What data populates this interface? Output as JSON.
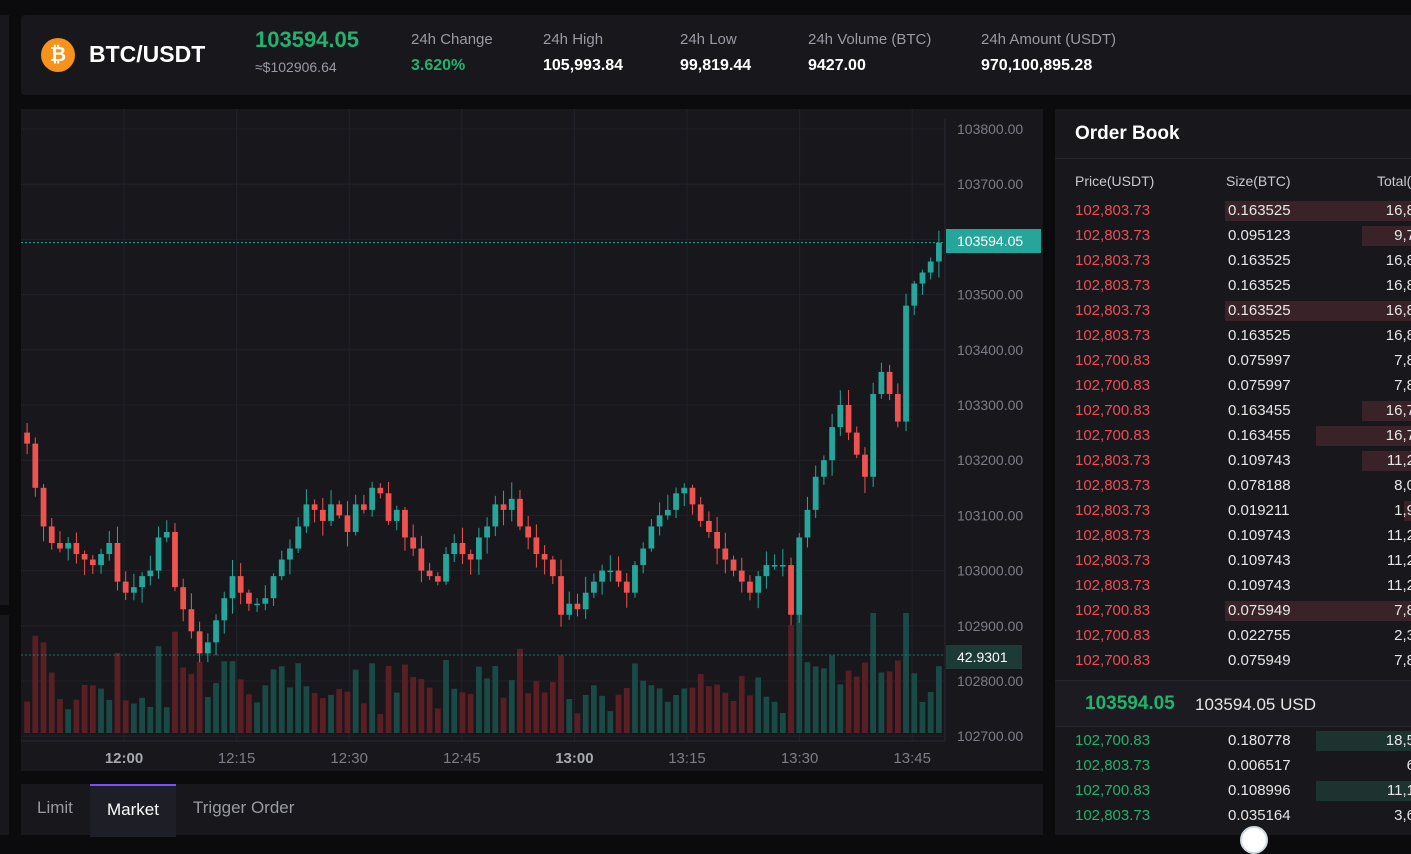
{
  "ticker": {
    "coin_icon": "bitcoin-icon",
    "coin_glyph": "₿",
    "pair": "BTC/USDT",
    "last_price": "103594.05",
    "last_usd": "≈$102906.64",
    "stats": [
      {
        "label": "24h Change",
        "value": "3.620%",
        "positive": true
      },
      {
        "label": "24h High",
        "value": "105,993.84"
      },
      {
        "label": "24h Low",
        "value": "99,819.44"
      },
      {
        "label": "24h Volume (BTC)",
        "value": "9427.00"
      },
      {
        "label": "24h Amount (USDT)",
        "value": "970,100,895.28"
      }
    ]
  },
  "chart_data": {
    "type": "candlestick",
    "y_ticks": [
      "103800.00",
      "103700.00",
      "103600.00",
      "103500.00",
      "103400.00",
      "103300.00",
      "103200.00",
      "103100.00",
      "103000.00",
      "102900.00",
      "102800.00",
      "102700.00"
    ],
    "x_ticks": [
      {
        "label": "12:00",
        "bold": true
      },
      {
        "label": "12:15",
        "bold": false
      },
      {
        "label": "12:30",
        "bold": false
      },
      {
        "label": "12:45",
        "bold": false
      },
      {
        "label": "13:00",
        "bold": true
      },
      {
        "label": "13:15",
        "bold": false
      },
      {
        "label": "13:30",
        "bold": false
      },
      {
        "label": "13:45",
        "bold": false
      }
    ],
    "current_price": "103594.05",
    "volume_marker": "42.9301",
    "closes": [
      103230,
      103150,
      103080,
      103050,
      103040,
      103050,
      103030,
      103020,
      103010,
      103030,
      103050,
      102980,
      102960,
      102970,
      102990,
      103000,
      103060,
      103070,
      102970,
      102930,
      102890,
      102850,
      102870,
      102910,
      102950,
      102990,
      102960,
      102940,
      102940,
      102950,
      102990,
      103020,
      103040,
      103080,
      103120,
      103110,
      103090,
      103120,
      103100,
      103070,
      103120,
      103110,
      103150,
      103140,
      103090,
      103110,
      103060,
      103040,
      103000,
      102990,
      102980,
      103030,
      103050,
      103030,
      103020,
      103060,
      103080,
      103120,
      103110,
      103130,
      103080,
      103060,
      103030,
      103020,
      102990,
      102920,
      102940,
      102930,
      102960,
      102980,
      103000,
      103000,
      102980,
      102960,
      103010,
      103040,
      103080,
      103100,
      103110,
      103140,
      103150,
      103120,
      103090,
      103070,
      103040,
      103020,
      103000,
      102980,
      102960,
      102990,
      103010,
      103010,
      103010,
      102920,
      103060,
      103110,
      103170,
      103200,
      103260,
      103300,
      103250,
      103210,
      103170,
      103320,
      103360,
      103320,
      103270,
      103480,
      103520,
      103540,
      103560,
      103594
    ]
  },
  "order_tabs": [
    {
      "label": "Limit",
      "active": false
    },
    {
      "label": "Market",
      "active": true
    },
    {
      "label": "Trigger Order",
      "active": false
    }
  ],
  "order_book": {
    "title": "Order Book",
    "headers": {
      "price": "Price(USDT)",
      "size": "Size(BTC)",
      "total": "Total("
    },
    "asks": [
      {
        "price": "102,803.73",
        "size": "0.163525",
        "total": "16,8",
        "depth": 1.0
      },
      {
        "price": "102,803.73",
        "size": "0.095123",
        "total": "9,7",
        "depth": 0.28
      },
      {
        "price": "102,803.73",
        "size": "0.163525",
        "total": "16,8",
        "depth": 0
      },
      {
        "price": "102,803.73",
        "size": "0.163525",
        "total": "16,8",
        "depth": 0
      },
      {
        "price": "102,803.73",
        "size": "0.163525",
        "total": "16,8",
        "depth": 1.0
      },
      {
        "price": "102,803.73",
        "size": "0.163525",
        "total": "16,8",
        "depth": 0
      },
      {
        "price": "102,700.83",
        "size": "0.075997",
        "total": "7,8",
        "depth": 0
      },
      {
        "price": "102,700.83",
        "size": "0.075997",
        "total": "7,8",
        "depth": 0
      },
      {
        "price": "102,700.83",
        "size": "0.163455",
        "total": "16,7",
        "depth": 0.28
      },
      {
        "price": "102,700.83",
        "size": "0.163455",
        "total": "16,7",
        "depth": 0.52
      },
      {
        "price": "102,803.73",
        "size": "0.109743",
        "total": "11,2",
        "depth": 0.28
      },
      {
        "price": "102,803.73",
        "size": "0.078188",
        "total": "8,0",
        "depth": 0
      },
      {
        "price": "102,803.73",
        "size": "0.019211",
        "total": "1,9",
        "depth": 0.06
      },
      {
        "price": "102,803.73",
        "size": "0.109743",
        "total": "11,2",
        "depth": 0
      },
      {
        "price": "102,803.73",
        "size": "0.109743",
        "total": "11,2",
        "depth": 0
      },
      {
        "price": "102,803.73",
        "size": "0.109743",
        "total": "11,2",
        "depth": 0
      },
      {
        "price": "102,700.83",
        "size": "0.075949",
        "total": "7,8",
        "depth": 1.0
      },
      {
        "price": "102,700.83",
        "size": "0.022755",
        "total": "2,3",
        "depth": 0
      },
      {
        "price": "102,700.83",
        "size": "0.075949",
        "total": "7,8",
        "depth": 0
      }
    ],
    "mid_price": "103594.05",
    "mid_usd": "103594.05 USD",
    "bids": [
      {
        "price": "102,700.83",
        "size": "0.180778",
        "total": "18,5",
        "depth": 0.52
      },
      {
        "price": "102,803.73",
        "size": "0.006517",
        "total": "6",
        "depth": 0
      },
      {
        "price": "102,700.83",
        "size": "0.108996",
        "total": "11,1",
        "depth": 0.52
      },
      {
        "price": "102,803.73",
        "size": "0.035164",
        "total": "3,6",
        "depth": 0
      }
    ]
  }
}
